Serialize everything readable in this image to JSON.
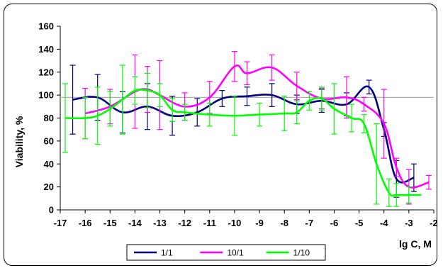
{
  "chart_data": {
    "type": "line",
    "xlabel": "lg C, M",
    "ylabel": "Viability, %",
    "xlim": [
      -17,
      -2
    ],
    "ylim": [
      0,
      160
    ],
    "x_ticks": [
      "-17",
      "-16",
      "-15",
      "-14",
      "-13",
      "-12",
      "-11",
      "-10",
      "-9",
      "-8",
      "-7",
      "-6",
      "-5",
      "-4",
      "-3",
      "-2"
    ],
    "y_ticks": [
      "0",
      "20",
      "40",
      "60",
      "80",
      "100",
      "120",
      "140",
      "160"
    ],
    "reference_line": 98,
    "grid": false,
    "plot_background": "#ffffff",
    "legend_position": "bottom",
    "series": [
      {
        "name": "1/1",
        "color": "#000080",
        "x": [
          -16.5,
          -15.5,
          -14.5,
          -13.5,
          -12.5,
          -11.5,
          -10.5,
          -9.5,
          -8.5,
          -7.5,
          -6.5,
          -5.5,
          -4.6,
          -4,
          -3.5,
          -2.8
        ],
        "y": [
          96,
          98,
          85,
          90,
          82,
          85,
          97,
          99,
          100,
          92,
          95,
          92,
          107,
          70,
          27,
          28
        ],
        "err": [
          30,
          20,
          18,
          20,
          17,
          12,
          7,
          8,
          10,
          8,
          10,
          10,
          6,
          6,
          16,
          12
        ]
      },
      {
        "name": "10/1",
        "color": "#ff00ff",
        "x": [
          -16,
          -15,
          -14,
          -13.5,
          -13,
          -12,
          -11,
          -10,
          -9.5,
          -8.5,
          -7.5,
          -6.5,
          -5.5,
          -4.8,
          -4,
          -3.5,
          -3,
          -2.2
        ],
        "y": [
          84,
          90,
          103,
          105,
          100,
          90,
          98,
          125,
          119,
          124,
          108,
          97,
          98,
          92,
          75,
          37,
          20,
          24
        ],
        "err": [
          22,
          15,
          32,
          20,
          30,
          12,
          14,
          13,
          10,
          11,
          12,
          9,
          18,
          6,
          30,
          8,
          15,
          6
        ]
      },
      {
        "name": "1/10",
        "color": "#00ff00",
        "x": [
          -16.8,
          -16,
          -15.5,
          -15,
          -14.5,
          -14,
          -13.5,
          -13,
          -12.5,
          -12,
          -11,
          -10,
          -9,
          -8,
          -7.5,
          -7,
          -6.5,
          -6,
          -5.3,
          -4.8,
          -4.3,
          -3.8,
          -3.5,
          -3,
          -2.5
        ],
        "y": [
          80,
          80,
          82,
          88,
          96,
          104,
          104,
          100,
          87,
          85,
          83,
          82,
          83,
          84,
          85,
          95,
          97,
          88,
          80,
          75,
          40,
          15,
          13,
          13,
          13
        ],
        "err": [
          30,
          18,
          25,
          15,
          30,
          12,
          15,
          10,
          10,
          7,
          10,
          17,
          10,
          15,
          10,
          8,
          10,
          22,
          12,
          8,
          35,
          12,
          10,
          7,
          0
        ]
      }
    ]
  }
}
